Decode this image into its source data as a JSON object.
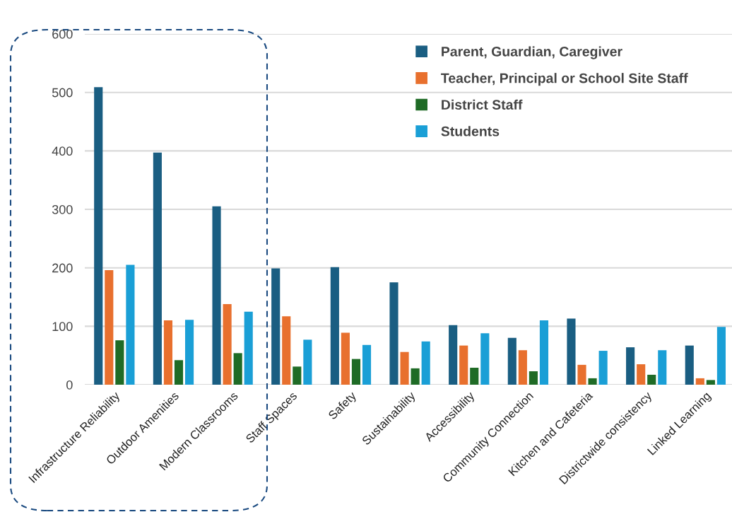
{
  "chart_data": {
    "type": "bar",
    "categories": [
      "Infrastructure Reliability",
      "Outdoor Amenities",
      "Modern Classrooms",
      "Staff Spaces",
      "Safety",
      "Sustainability",
      "Accessibility",
      "Community Connection",
      "Kitchen and Cafeteria",
      "Districtwide consistency",
      "Linked Learning"
    ],
    "series": [
      {
        "name": "Parent, Guardian, Caregiver",
        "color": "#1a5e82",
        "values": [
          509,
          397,
          305,
          199,
          201,
          175,
          102,
          80,
          113,
          64,
          67
        ]
      },
      {
        "name": "Teacher, Principal or School Site Staff",
        "color": "#e8702e",
        "values": [
          196,
          110,
          138,
          117,
          89,
          56,
          67,
          59,
          34,
          35,
          11
        ]
      },
      {
        "name": "District Staff",
        "color": "#1f6b26",
        "values": [
          76,
          42,
          54,
          31,
          44,
          28,
          29,
          23,
          11,
          17,
          8
        ]
      },
      {
        "name": "Students",
        "color": "#1a9fd6",
        "values": [
          205,
          111,
          125,
          77,
          68,
          74,
          88,
          110,
          58,
          59,
          99
        ]
      }
    ],
    "ylim": [
      0,
      600
    ],
    "yticks": [
      0,
      100,
      200,
      300,
      400,
      500,
      600
    ],
    "grid": "y",
    "legend": "top right"
  }
}
